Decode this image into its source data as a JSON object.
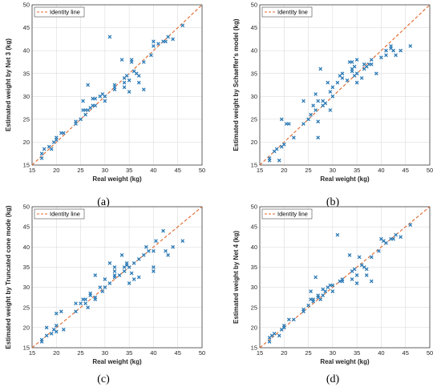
{
  "colors": {
    "marker": "#2a79b5",
    "identity_line": "#e0662a",
    "grid": "#dddddd",
    "axis": "#262626"
  },
  "chart_data": [
    {
      "type": "scatter",
      "caption": "(a)",
      "xlabel": "Real weight (kg)",
      "ylabel": "Estimated weight by Net 3 (kg)",
      "xlim": [
        15,
        50
      ],
      "ylim": [
        15,
        50
      ],
      "xticks": [
        15,
        20,
        25,
        30,
        35,
        40,
        45,
        50
      ],
      "yticks": [
        15,
        20,
        25,
        30,
        35,
        40,
        45,
        50
      ],
      "grid": true,
      "legend": {
        "position": "top-left",
        "entries": [
          "Identity line"
        ]
      },
      "identity_line": [
        [
          15,
          15
        ],
        [
          50,
          50
        ]
      ],
      "points": [
        [
          17,
          17.5
        ],
        [
          17,
          16.5
        ],
        [
          17.5,
          18.5
        ],
        [
          18.5,
          19
        ],
        [
          19,
          18.5
        ],
        [
          19.5,
          20
        ],
        [
          20,
          20.5
        ],
        [
          20,
          21
        ],
        [
          21,
          22
        ],
        [
          21.5,
          22
        ],
        [
          24,
          24
        ],
        [
          24,
          24.5
        ],
        [
          25,
          25
        ],
        [
          25.5,
          29
        ],
        [
          25.5,
          27
        ],
        [
          26,
          27
        ],
        [
          26.5,
          32.5
        ],
        [
          26.5,
          27
        ],
        [
          26,
          26
        ],
        [
          27,
          27.5
        ],
        [
          27.5,
          28
        ],
        [
          27.5,
          29.5
        ],
        [
          28,
          29.5
        ],
        [
          28,
          28
        ],
        [
          29,
          30
        ],
        [
          29.5,
          30.5
        ],
        [
          30,
          30
        ],
        [
          30,
          29
        ],
        [
          31,
          43
        ],
        [
          32,
          31.5
        ],
        [
          32,
          32
        ],
        [
          32,
          32.5
        ],
        [
          33.5,
          38
        ],
        [
          34,
          34
        ],
        [
          34,
          33
        ],
        [
          34.5,
          34.5
        ],
        [
          34,
          32
        ],
        [
          35,
          31
        ],
        [
          35,
          33.5
        ],
        [
          35.5,
          37.5
        ],
        [
          35.5,
          38
        ],
        [
          36,
          35.5
        ],
        [
          36.5,
          35
        ],
        [
          37,
          33
        ],
        [
          37,
          34.5
        ],
        [
          38,
          37.5
        ],
        [
          38,
          31.5
        ],
        [
          39.5,
          39
        ],
        [
          40,
          42
        ],
        [
          40,
          41
        ],
        [
          41,
          41.5
        ],
        [
          42,
          42
        ],
        [
          42.5,
          42
        ],
        [
          43,
          43
        ],
        [
          44,
          42.5
        ],
        [
          46,
          45.5
        ]
      ]
    },
    {
      "type": "scatter",
      "caption": "(b)",
      "xlabel": "Real weight (kg)",
      "ylabel": "Estimated weight by Schaeffer's model (kg)",
      "xlim": [
        15,
        50
      ],
      "ylim": [
        15,
        50
      ],
      "xticks": [
        15,
        20,
        25,
        30,
        35,
        40,
        45,
        50
      ],
      "yticks": [
        15,
        20,
        25,
        30,
        35,
        40,
        45,
        50
      ],
      "grid": true,
      "legend": {
        "position": "top-left",
        "entries": [
          "Identity line"
        ]
      },
      "identity_line": [
        [
          15,
          15
        ],
        [
          50,
          50
        ]
      ],
      "points": [
        [
          17,
          16.5
        ],
        [
          17,
          16
        ],
        [
          18,
          18
        ],
        [
          18.5,
          18.5
        ],
        [
          19,
          16
        ],
        [
          19.5,
          19
        ],
        [
          19.5,
          25
        ],
        [
          20,
          19.5
        ],
        [
          20.5,
          24
        ],
        [
          21,
          24
        ],
        [
          22,
          21
        ],
        [
          24,
          29
        ],
        [
          24,
          24
        ],
        [
          25,
          25
        ],
        [
          25.5,
          26
        ],
        [
          26,
          28
        ],
        [
          26.5,
          27
        ],
        [
          26.5,
          30.5
        ],
        [
          27,
          29
        ],
        [
          27,
          21
        ],
        [
          27,
          24.5
        ],
        [
          27.5,
          36
        ],
        [
          28,
          28
        ],
        [
          28,
          29
        ],
        [
          28.5,
          28.5
        ],
        [
          29,
          33
        ],
        [
          29.5,
          27
        ],
        [
          29.5,
          31
        ],
        [
          30,
          30
        ],
        [
          30,
          32
        ],
        [
          31,
          33
        ],
        [
          31.5,
          34.5
        ],
        [
          32,
          34
        ],
        [
          32,
          35
        ],
        [
          33,
          33.5
        ],
        [
          33.5,
          37.5
        ],
        [
          34,
          36
        ],
        [
          34,
          35.5
        ],
        [
          34,
          37.5
        ],
        [
          34.5,
          36.5
        ],
        [
          34.5,
          34.5
        ],
        [
          35,
          33
        ],
        [
          35,
          35
        ],
        [
          35,
          38
        ],
        [
          36,
          34
        ],
        [
          36.5,
          36
        ],
        [
          36.5,
          37
        ],
        [
          37,
          36.5
        ],
        [
          37.5,
          37
        ],
        [
          38,
          37
        ],
        [
          38,
          38
        ],
        [
          39,
          35
        ],
        [
          40,
          38.5
        ],
        [
          41,
          39
        ],
        [
          41,
          40
        ],
        [
          42,
          41
        ],
        [
          42,
          40.5
        ],
        [
          42.5,
          40
        ],
        [
          43,
          39
        ],
        [
          44,
          40
        ],
        [
          46,
          41
        ]
      ]
    },
    {
      "type": "scatter",
      "caption": "(c)",
      "xlabel": "Real weight (kg)",
      "ylabel": "Estimated weight by Truncated cone mode (kg)",
      "xlim": [
        15,
        50
      ],
      "ylim": [
        15,
        50
      ],
      "xticks": [
        15,
        20,
        25,
        30,
        35,
        40,
        45,
        50
      ],
      "yticks": [
        15,
        20,
        25,
        30,
        35,
        40,
        45,
        50
      ],
      "grid": true,
      "legend": {
        "position": "top-left",
        "entries": [
          "Identity line"
        ]
      },
      "identity_line": [
        [
          15,
          15
        ],
        [
          50,
          50
        ]
      ],
      "points": [
        [
          17,
          17
        ],
        [
          17,
          16.5
        ],
        [
          18,
          18
        ],
        [
          18,
          20
        ],
        [
          19,
          18.5
        ],
        [
          19.5,
          19.5
        ],
        [
          20,
          20.5
        ],
        [
          20,
          19
        ],
        [
          20,
          23.5
        ],
        [
          21,
          24
        ],
        [
          21.5,
          19.5
        ],
        [
          24,
          26
        ],
        [
          24,
          24
        ],
        [
          25,
          26
        ],
        [
          25.5,
          27
        ],
        [
          26,
          26
        ],
        [
          26,
          27
        ],
        [
          26.5,
          25
        ],
        [
          27,
          28
        ],
        [
          27,
          28.5
        ],
        [
          28,
          27.5
        ],
        [
          28,
          33
        ],
        [
          28,
          27
        ],
        [
          29,
          30
        ],
        [
          29.5,
          29
        ],
        [
          30,
          30
        ],
        [
          30,
          32
        ],
        [
          31,
          31
        ],
        [
          31,
          36
        ],
        [
          32,
          33
        ],
        [
          32,
          32.5
        ],
        [
          32,
          34
        ],
        [
          32,
          35
        ],
        [
          33,
          33
        ],
        [
          33.5,
          38
        ],
        [
          34,
          34
        ],
        [
          34,
          35
        ],
        [
          34.5,
          36
        ],
        [
          34.5,
          35.5
        ],
        [
          35,
          35
        ],
        [
          35,
          31
        ],
        [
          35.5,
          33.5
        ],
        [
          36,
          32
        ],
        [
          36,
          36
        ],
        [
          37,
          37
        ],
        [
          37,
          32.5
        ],
        [
          38,
          38
        ],
        [
          38.5,
          40
        ],
        [
          39,
          39
        ],
        [
          40,
          39
        ],
        [
          40,
          35
        ],
        [
          40,
          34
        ],
        [
          40.5,
          41.5
        ],
        [
          42,
          44
        ],
        [
          42.5,
          39
        ],
        [
          43,
          38
        ],
        [
          44,
          40
        ],
        [
          46,
          41.5
        ]
      ]
    },
    {
      "type": "scatter",
      "caption": "(d)",
      "xlabel": "Real weight (kg)",
      "ylabel": "Estimated weight by Net 4 (kg)",
      "xlim": [
        15,
        50
      ],
      "ylim": [
        15,
        50
      ],
      "xticks": [
        15,
        20,
        25,
        30,
        35,
        40,
        45,
        50
      ],
      "yticks": [
        15,
        20,
        25,
        30,
        35,
        40,
        45,
        50
      ],
      "grid": true,
      "legend": {
        "position": "top-left",
        "entries": [
          "Identity line"
        ]
      },
      "identity_line": [
        [
          15,
          15
        ],
        [
          50,
          50
        ]
      ],
      "points": [
        [
          17,
          17.5
        ],
        [
          17,
          16.5
        ],
        [
          17.5,
          18
        ],
        [
          18,
          18.5
        ],
        [
          19,
          18
        ],
        [
          19.5,
          19.5
        ],
        [
          20,
          20.5
        ],
        [
          20,
          20
        ],
        [
          21,
          22
        ],
        [
          22,
          22
        ],
        [
          24,
          24
        ],
        [
          24,
          24.5
        ],
        [
          25,
          25.5
        ],
        [
          25.5,
          29
        ],
        [
          25.5,
          27
        ],
        [
          26,
          26.5
        ],
        [
          26,
          27
        ],
        [
          26.5,
          32.5
        ],
        [
          27,
          27.5
        ],
        [
          27,
          28
        ],
        [
          27.5,
          27
        ],
        [
          28,
          29.5
        ],
        [
          28,
          28
        ],
        [
          28.5,
          29
        ],
        [
          29,
          30
        ],
        [
          29.5,
          30.5
        ],
        [
          30,
          30.5
        ],
        [
          30,
          29
        ],
        [
          31,
          43
        ],
        [
          31.5,
          31.5
        ],
        [
          32,
          31.5
        ],
        [
          32,
          32
        ],
        [
          33.5,
          38
        ],
        [
          34,
          34
        ],
        [
          34,
          32
        ],
        [
          34.5,
          34.5
        ],
        [
          35,
          31
        ],
        [
          35,
          33
        ],
        [
          35.5,
          37.5
        ],
        [
          36,
          35.5
        ],
        [
          36.5,
          35
        ],
        [
          37,
          33
        ],
        [
          37,
          34.5
        ],
        [
          38,
          37.5
        ],
        [
          38,
          31.5
        ],
        [
          39.5,
          39
        ],
        [
          40,
          42
        ],
        [
          40.5,
          41.5
        ],
        [
          41,
          41
        ],
        [
          42,
          42
        ],
        [
          42.5,
          42
        ],
        [
          43,
          43
        ],
        [
          44,
          42.5
        ],
        [
          46,
          45.5
        ]
      ]
    }
  ]
}
